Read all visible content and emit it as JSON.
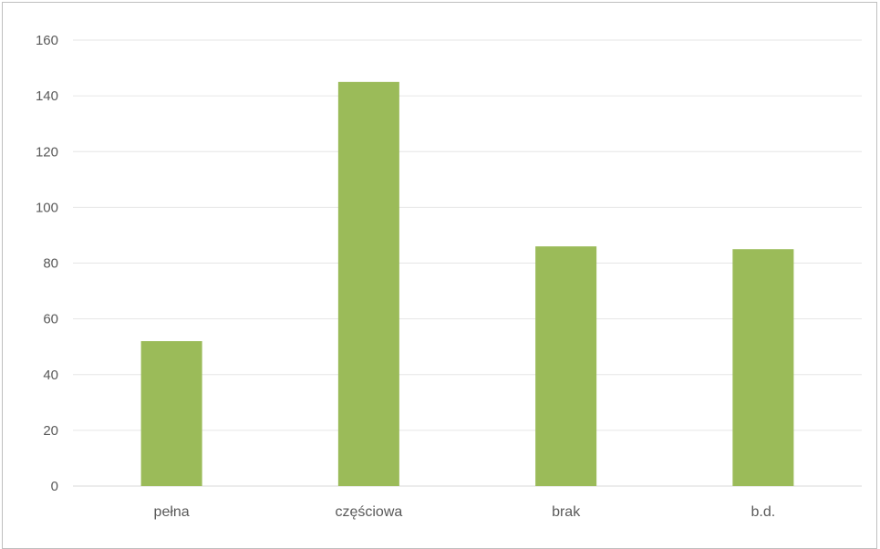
{
  "chart_data": {
    "type": "bar",
    "title": "",
    "xlabel": "",
    "ylabel": "",
    "categories": [
      "pełna",
      "częściowa",
      "brak",
      "b.d."
    ],
    "series": [
      {
        "values": [
          52,
          145,
          86,
          85
        ],
        "color": "#9bbb59"
      }
    ],
    "ylim": [
      0,
      160
    ],
    "yticks": [
      0,
      20,
      40,
      60,
      80,
      100,
      120,
      140,
      160
    ],
    "grid": true,
    "legend": "none"
  }
}
